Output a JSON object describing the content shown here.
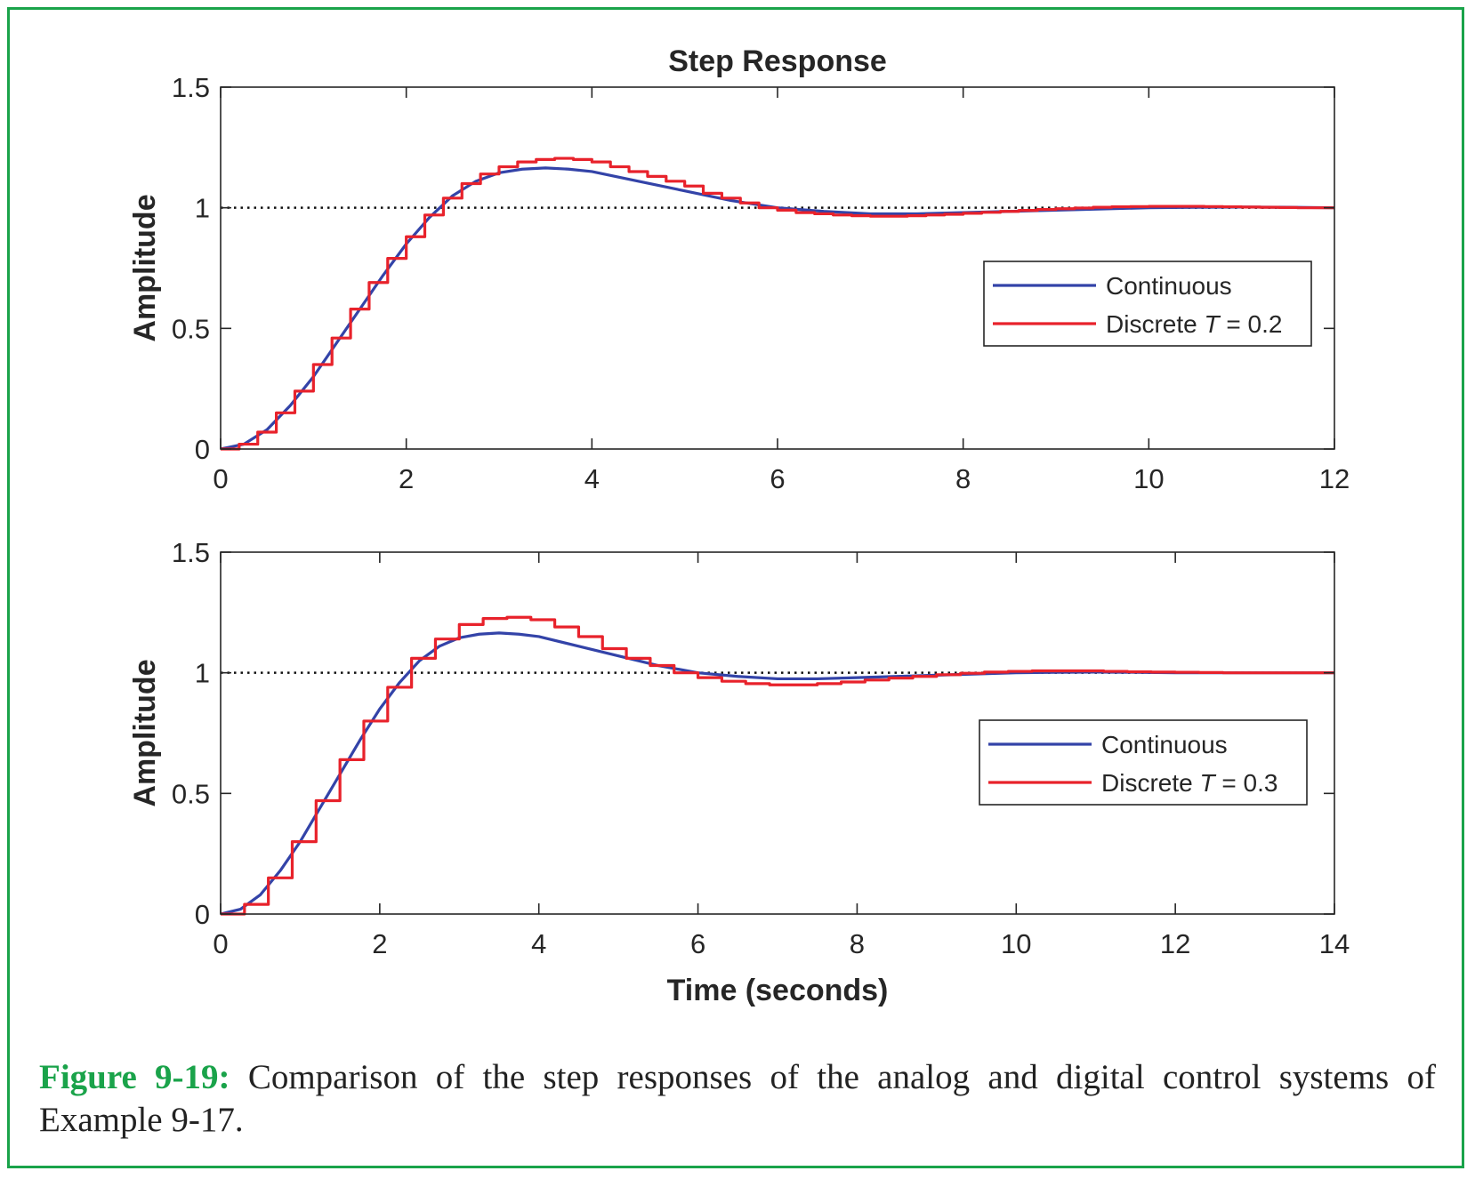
{
  "chart_data": [
    {
      "type": "line",
      "title": "Step Response",
      "ylabel": "Amplitude",
      "xlabel": "",
      "xlim": [
        0,
        12
      ],
      "ylim": [
        0,
        1.5
      ],
      "xticks": [
        "0",
        "2",
        "4",
        "6",
        "8",
        "10",
        "12"
      ],
      "yticks": [
        "0",
        "0.5",
        "1",
        "1.5"
      ],
      "reference_line": 1,
      "grid": false,
      "legend_position": "right",
      "series": [
        {
          "name": "Continuous",
          "style": "line",
          "color": "#3343a8",
          "x": [
            0,
            0.25,
            0.5,
            0.75,
            1,
            1.25,
            1.5,
            1.75,
            2,
            2.25,
            2.5,
            2.75,
            3,
            3.25,
            3.5,
            3.75,
            4,
            4.5,
            5,
            5.5,
            6,
            6.5,
            7,
            7.5,
            8,
            8.5,
            9,
            9.5,
            10,
            10.5,
            11,
            11.5,
            12
          ],
          "y": [
            0,
            0.02,
            0.08,
            0.18,
            0.3,
            0.44,
            0.58,
            0.72,
            0.85,
            0.96,
            1.05,
            1.11,
            1.145,
            1.16,
            1.165,
            1.16,
            1.15,
            1.11,
            1.07,
            1.03,
            1.0,
            0.985,
            0.975,
            0.975,
            0.98,
            0.985,
            0.99,
            0.995,
            1.0,
            1.002,
            1.003,
            1.002,
            1.0
          ]
        },
        {
          "name": "Discrete",
          "name_italic": "T",
          "name_suffix": " = 0.2",
          "style": "step",
          "color": "#e8222b",
          "x": [
            0,
            0.2,
            0.4,
            0.6,
            0.8,
            1.0,
            1.2,
            1.4,
            1.6,
            1.8,
            2.0,
            2.2,
            2.4,
            2.6,
            2.8,
            3.0,
            3.2,
            3.4,
            3.6,
            3.8,
            4.0,
            4.2,
            4.4,
            4.6,
            4.8,
            5.0,
            5.2,
            5.4,
            5.6,
            5.8,
            6.0,
            6.2,
            6.4,
            6.6,
            6.8,
            7.0,
            7.2,
            7.4,
            7.6,
            7.8,
            8.0,
            8.2,
            8.4,
            8.6,
            8.8,
            9.0,
            9.2,
            9.4,
            9.6,
            9.8,
            10.0,
            10.2,
            10.4,
            10.6,
            10.8,
            11.0,
            11.2,
            11.4,
            11.6,
            11.8,
            12.0
          ],
          "y": [
            0,
            0.02,
            0.07,
            0.15,
            0.24,
            0.35,
            0.46,
            0.58,
            0.69,
            0.79,
            0.88,
            0.97,
            1.04,
            1.1,
            1.14,
            1.17,
            1.19,
            1.2,
            1.205,
            1.2,
            1.19,
            1.17,
            1.15,
            1.13,
            1.11,
            1.09,
            1.06,
            1.04,
            1.02,
            1.0,
            0.99,
            0.98,
            0.975,
            0.97,
            0.967,
            0.965,
            0.965,
            0.967,
            0.97,
            0.973,
            0.977,
            0.981,
            0.985,
            0.989,
            0.993,
            0.996,
            0.999,
            1.002,
            1.004,
            1.005,
            1.006,
            1.006,
            1.006,
            1.005,
            1.004,
            1.003,
            1.002,
            1.001,
            1.0,
            1.0,
            1.0
          ]
        }
      ]
    },
    {
      "type": "line",
      "title": "",
      "ylabel": "Amplitude",
      "xlabel": "Time (seconds)",
      "xlim": [
        0,
        14
      ],
      "ylim": [
        0,
        1.5
      ],
      "xticks": [
        "0",
        "2",
        "4",
        "6",
        "8",
        "10",
        "12",
        "14"
      ],
      "yticks": [
        "0",
        "0.5",
        "1",
        "1.5"
      ],
      "reference_line": 1,
      "grid": false,
      "legend_position": "right",
      "series": [
        {
          "name": "Continuous",
          "style": "line",
          "color": "#3343a8",
          "x": [
            0,
            0.25,
            0.5,
            0.75,
            1,
            1.25,
            1.5,
            1.75,
            2,
            2.25,
            2.5,
            2.75,
            3,
            3.25,
            3.5,
            3.75,
            4,
            4.5,
            5,
            5.5,
            6,
            6.5,
            7,
            7.5,
            8,
            8.5,
            9,
            9.5,
            10,
            10.5,
            11,
            11.5,
            12,
            13,
            14
          ],
          "y": [
            0,
            0.02,
            0.08,
            0.18,
            0.3,
            0.44,
            0.58,
            0.72,
            0.85,
            0.96,
            1.05,
            1.11,
            1.145,
            1.16,
            1.165,
            1.16,
            1.15,
            1.11,
            1.07,
            1.03,
            1.0,
            0.985,
            0.975,
            0.975,
            0.98,
            0.985,
            0.99,
            0.995,
            1.0,
            1.002,
            1.003,
            1.002,
            1.0,
            1.0,
            1.0
          ]
        },
        {
          "name": "Discrete",
          "name_italic": "T",
          "name_suffix": " = 0.3",
          "style": "step",
          "color": "#e8222b",
          "x": [
            0,
            0.3,
            0.6,
            0.9,
            1.2,
            1.5,
            1.8,
            2.1,
            2.4,
            2.7,
            3.0,
            3.3,
            3.6,
            3.9,
            4.2,
            4.5,
            4.8,
            5.1,
            5.4,
            5.7,
            6.0,
            6.3,
            6.6,
            6.9,
            7.2,
            7.5,
            7.8,
            8.1,
            8.4,
            8.7,
            9.0,
            9.3,
            9.6,
            9.9,
            10.2,
            10.5,
            10.8,
            11.1,
            11.4,
            11.7,
            12.0,
            12.3,
            12.6,
            12.9,
            13.2,
            13.5,
            13.8,
            14.0
          ],
          "y": [
            0,
            0.04,
            0.15,
            0.3,
            0.47,
            0.64,
            0.8,
            0.94,
            1.06,
            1.14,
            1.2,
            1.225,
            1.23,
            1.22,
            1.19,
            1.15,
            1.1,
            1.06,
            1.03,
            1.0,
            0.98,
            0.965,
            0.955,
            0.95,
            0.95,
            0.955,
            0.962,
            0.97,
            0.978,
            0.985,
            0.992,
            0.998,
            1.003,
            1.006,
            1.008,
            1.008,
            1.008,
            1.006,
            1.004,
            1.003,
            1.002,
            1.001,
            1.0,
            1.0,
            1.0,
            1.0,
            1.0,
            1.0
          ]
        }
      ]
    }
  ],
  "caption": {
    "label": "Figure 9-19:",
    "text": " Comparison of the step responses of the analog and digital control systems of Example 9-17."
  }
}
